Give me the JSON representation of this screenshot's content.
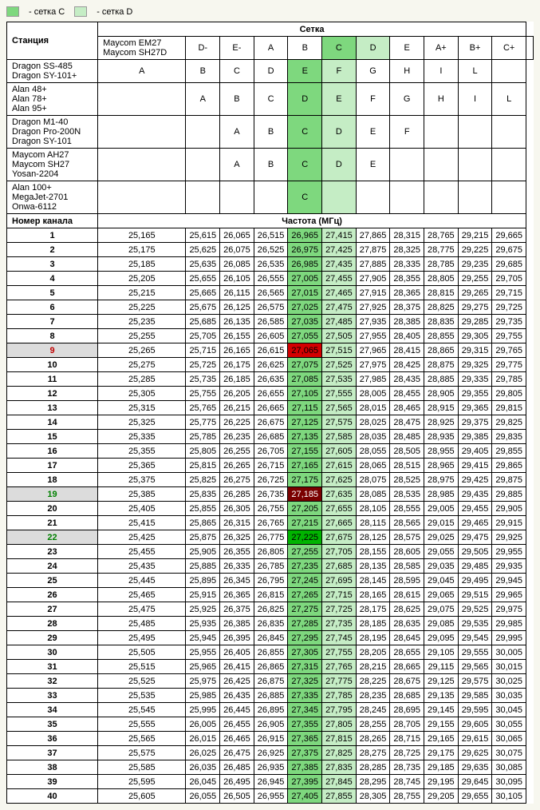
{
  "legend": {
    "c_label": "- сетка C",
    "d_label": "- сетка D",
    "c_color": "#7ed87e",
    "d_color": "#c5edc5"
  },
  "header": {
    "station": "Станция",
    "grid": "Сетка",
    "channel": "Номер канала",
    "freq": "Частота (МГц)"
  },
  "stations": [
    {
      "names": [
        "Maycom EM27",
        "Maycom SH27D"
      ],
      "cells": [
        "D-",
        "E-",
        "A",
        "B",
        "C",
        "D",
        "E",
        "A+",
        "B+",
        "C+",
        ""
      ]
    },
    {
      "names": [
        "Dragon SS-485",
        "Dragon SY-101+"
      ],
      "cells": [
        "A",
        "B",
        "C",
        "D",
        "E",
        "F",
        "G",
        "H",
        "I",
        "L",
        ""
      ]
    },
    {
      "names": [
        "Alan 48+",
        "Alan 78+",
        "Alan 95+"
      ],
      "cells": [
        "",
        "A",
        "B",
        "C",
        "D",
        "E",
        "F",
        "G",
        "H",
        "I",
        "L"
      ]
    },
    {
      "names": [
        "Dragon M1-40",
        "Dragon Pro-200N",
        "Dragon SY-101"
      ],
      "cells": [
        "",
        "",
        "A",
        "B",
        "C",
        "D",
        "E",
        "F",
        "",
        "",
        ""
      ]
    },
    {
      "names": [
        "Maycom AH27",
        "Maycom SH27",
        "Yosan-2204"
      ],
      "cells": [
        "",
        "",
        "A",
        "B",
        "C",
        "D",
        "E",
        "",
        "",
        "",
        ""
      ]
    },
    {
      "names": [
        "Alan 100+",
        "MegaJet-2701",
        "Onwa-6112"
      ],
      "cells": [
        "",
        "",
        "",
        "",
        "C",
        "",
        "",
        "",
        "",
        "",
        ""
      ]
    }
  ],
  "channels": [
    {
      "n": "1",
      "f": [
        "25,165",
        "25,615",
        "26,065",
        "26,515",
        "26,965",
        "27,415",
        "27,865",
        "28,315",
        "28,765",
        "29,215",
        "29,665"
      ]
    },
    {
      "n": "2",
      "f": [
        "25,175",
        "25,625",
        "26,075",
        "26,525",
        "26,975",
        "27,425",
        "27,875",
        "28,325",
        "28,775",
        "29,225",
        "29,675"
      ]
    },
    {
      "n": "3",
      "f": [
        "25,185",
        "25,635",
        "26,085",
        "26,535",
        "26,985",
        "27,435",
        "27,885",
        "28,335",
        "28,785",
        "29,235",
        "29,685"
      ]
    },
    {
      "n": "4",
      "f": [
        "25,205",
        "25,655",
        "26,105",
        "26,555",
        "27,005",
        "27,455",
        "27,905",
        "28,355",
        "28,805",
        "29,255",
        "29,705"
      ]
    },
    {
      "n": "5",
      "f": [
        "25,215",
        "25,665",
        "26,115",
        "26,565",
        "27,015",
        "27,465",
        "27,915",
        "28,365",
        "28,815",
        "29,265",
        "29,715"
      ]
    },
    {
      "n": "6",
      "f": [
        "25,225",
        "25,675",
        "26,125",
        "26,575",
        "27,025",
        "27,475",
        "27,925",
        "28,375",
        "28,825",
        "29,275",
        "29,725"
      ]
    },
    {
      "n": "7",
      "f": [
        "25,235",
        "25,685",
        "26,135",
        "26,585",
        "27,035",
        "27,485",
        "27,935",
        "28,385",
        "28,835",
        "29,285",
        "29,735"
      ]
    },
    {
      "n": "8",
      "f": [
        "25,255",
        "25,705",
        "26,155",
        "26,605",
        "27,055",
        "27,505",
        "27,955",
        "28,405",
        "28,855",
        "29,305",
        "29,755"
      ]
    },
    {
      "n": "9",
      "f": [
        "25,265",
        "25,715",
        "26,165",
        "26,615",
        "27,065",
        "27,515",
        "27,965",
        "28,415",
        "28,865",
        "29,315",
        "29,765"
      ],
      "row": "gray",
      "num": "red",
      "c5": "red"
    },
    {
      "n": "10",
      "f": [
        "25,275",
        "25,725",
        "26,175",
        "26,625",
        "27,075",
        "27,525",
        "27,975",
        "28,425",
        "28,875",
        "29,325",
        "29,775"
      ]
    },
    {
      "n": "11",
      "f": [
        "25,285",
        "25,735",
        "26,185",
        "26,635",
        "27,085",
        "27,535",
        "27,985",
        "28,435",
        "28,885",
        "29,335",
        "29,785"
      ]
    },
    {
      "n": "12",
      "f": [
        "25,305",
        "25,755",
        "26,205",
        "26,655",
        "27,105",
        "27,555",
        "28,005",
        "28,455",
        "28,905",
        "29,355",
        "29,805"
      ]
    },
    {
      "n": "13",
      "f": [
        "25,315",
        "25,765",
        "26,215",
        "26,665",
        "27,115",
        "27,565",
        "28,015",
        "28,465",
        "28,915",
        "29,365",
        "29,815"
      ]
    },
    {
      "n": "14",
      "f": [
        "25,325",
        "25,775",
        "26,225",
        "26,675",
        "27,125",
        "27,575",
        "28,025",
        "28,475",
        "28,925",
        "29,375",
        "29,825"
      ]
    },
    {
      "n": "15",
      "f": [
        "25,335",
        "25,785",
        "26,235",
        "26,685",
        "27,135",
        "27,585",
        "28,035",
        "28,485",
        "28,935",
        "29,385",
        "29,835"
      ]
    },
    {
      "n": "16",
      "f": [
        "25,355",
        "25,805",
        "26,255",
        "26,705",
        "27,155",
        "27,605",
        "28,055",
        "28,505",
        "28,955",
        "29,405",
        "29,855"
      ]
    },
    {
      "n": "17",
      "f": [
        "25,365",
        "25,815",
        "26,265",
        "26,715",
        "27,165",
        "27,615",
        "28,065",
        "28,515",
        "28,965",
        "29,415",
        "29,865"
      ]
    },
    {
      "n": "18",
      "f": [
        "25,375",
        "25,825",
        "26,275",
        "26,725",
        "27,175",
        "27,625",
        "28,075",
        "28,525",
        "28,975",
        "29,425",
        "29,875"
      ]
    },
    {
      "n": "19",
      "f": [
        "25,385",
        "25,835",
        "26,285",
        "26,735",
        "27,185",
        "27,635",
        "28,085",
        "28,535",
        "28,985",
        "29,435",
        "29,885"
      ],
      "row": "gray",
      "num": "green",
      "c5": "dk"
    },
    {
      "n": "20",
      "f": [
        "25,405",
        "25,855",
        "26,305",
        "26,755",
        "27,205",
        "27,655",
        "28,105",
        "28,555",
        "29,005",
        "29,455",
        "29,905"
      ]
    },
    {
      "n": "21",
      "f": [
        "25,415",
        "25,865",
        "26,315",
        "26,765",
        "27,215",
        "27,665",
        "28,115",
        "28,565",
        "29,015",
        "29,465",
        "29,915"
      ]
    },
    {
      "n": "22",
      "f": [
        "25,425",
        "25,875",
        "26,325",
        "26,775",
        "27,225",
        "27,675",
        "28,125",
        "28,575",
        "29,025",
        "29,475",
        "29,925"
      ],
      "row": "gray",
      "num": "green",
      "c5": "gr"
    },
    {
      "n": "23",
      "f": [
        "25,455",
        "25,905",
        "26,355",
        "26,805",
        "27,255",
        "27,705",
        "28,155",
        "28,605",
        "29,055",
        "29,505",
        "29,955"
      ]
    },
    {
      "n": "24",
      "f": [
        "25,435",
        "25,885",
        "26,335",
        "26,785",
        "27,235",
        "27,685",
        "28,135",
        "28,585",
        "29,035",
        "29,485",
        "29,935"
      ]
    },
    {
      "n": "25",
      "f": [
        "25,445",
        "25,895",
        "26,345",
        "26,795",
        "27,245",
        "27,695",
        "28,145",
        "28,595",
        "29,045",
        "29,495",
        "29,945"
      ]
    },
    {
      "n": "26",
      "f": [
        "25,465",
        "25,915",
        "26,365",
        "26,815",
        "27,265",
        "27,715",
        "28,165",
        "28,615",
        "29,065",
        "29,515",
        "29,965"
      ]
    },
    {
      "n": "27",
      "f": [
        "25,475",
        "25,925",
        "26,375",
        "26,825",
        "27,275",
        "27,725",
        "28,175",
        "28,625",
        "29,075",
        "29,525",
        "29,975"
      ]
    },
    {
      "n": "28",
      "f": [
        "25,485",
        "25,935",
        "26,385",
        "26,835",
        "27,285",
        "27,735",
        "28,185",
        "28,635",
        "29,085",
        "29,535",
        "29,985"
      ]
    },
    {
      "n": "29",
      "f": [
        "25,495",
        "25,945",
        "26,395",
        "26,845",
        "27,295",
        "27,745",
        "28,195",
        "28,645",
        "29,095",
        "29,545",
        "29,995"
      ]
    },
    {
      "n": "30",
      "f": [
        "25,505",
        "25,955",
        "26,405",
        "26,855",
        "27,305",
        "27,755",
        "28,205",
        "28,655",
        "29,105",
        "29,555",
        "30,005"
      ]
    },
    {
      "n": "31",
      "f": [
        "25,515",
        "25,965",
        "26,415",
        "26,865",
        "27,315",
        "27,765",
        "28,215",
        "28,665",
        "29,115",
        "29,565",
        "30,015"
      ]
    },
    {
      "n": "32",
      "f": [
        "25,525",
        "25,975",
        "26,425",
        "26,875",
        "27,325",
        "27,775",
        "28,225",
        "28,675",
        "29,125",
        "29,575",
        "30,025"
      ]
    },
    {
      "n": "33",
      "f": [
        "25,535",
        "25,985",
        "26,435",
        "26,885",
        "27,335",
        "27,785",
        "28,235",
        "28,685",
        "29,135",
        "29,585",
        "30,035"
      ]
    },
    {
      "n": "34",
      "f": [
        "25,545",
        "25,995",
        "26,445",
        "26,895",
        "27,345",
        "27,795",
        "28,245",
        "28,695",
        "29,145",
        "29,595",
        "30,045"
      ]
    },
    {
      "n": "35",
      "f": [
        "25,555",
        "26,005",
        "26,455",
        "26,905",
        "27,355",
        "27,805",
        "28,255",
        "28,705",
        "29,155",
        "29,605",
        "30,055"
      ]
    },
    {
      "n": "36",
      "f": [
        "25,565",
        "26,015",
        "26,465",
        "26,915",
        "27,365",
        "27,815",
        "28,265",
        "28,715",
        "29,165",
        "29,615",
        "30,065"
      ]
    },
    {
      "n": "37",
      "f": [
        "25,575",
        "26,025",
        "26,475",
        "26,925",
        "27,375",
        "27,825",
        "28,275",
        "28,725",
        "29,175",
        "29,625",
        "30,075"
      ]
    },
    {
      "n": "38",
      "f": [
        "25,585",
        "26,035",
        "26,485",
        "26,935",
        "27,385",
        "27,835",
        "28,285",
        "28,735",
        "29,185",
        "29,635",
        "30,085"
      ]
    },
    {
      "n": "39",
      "f": [
        "25,595",
        "26,045",
        "26,495",
        "26,945",
        "27,395",
        "27,845",
        "28,295",
        "28,745",
        "29,195",
        "29,645",
        "30,095"
      ]
    },
    {
      "n": "40",
      "f": [
        "25,605",
        "26,055",
        "26,505",
        "26,955",
        "27,405",
        "27,855",
        "28,305",
        "28,755",
        "29,205",
        "29,655",
        "30,105"
      ]
    }
  ]
}
